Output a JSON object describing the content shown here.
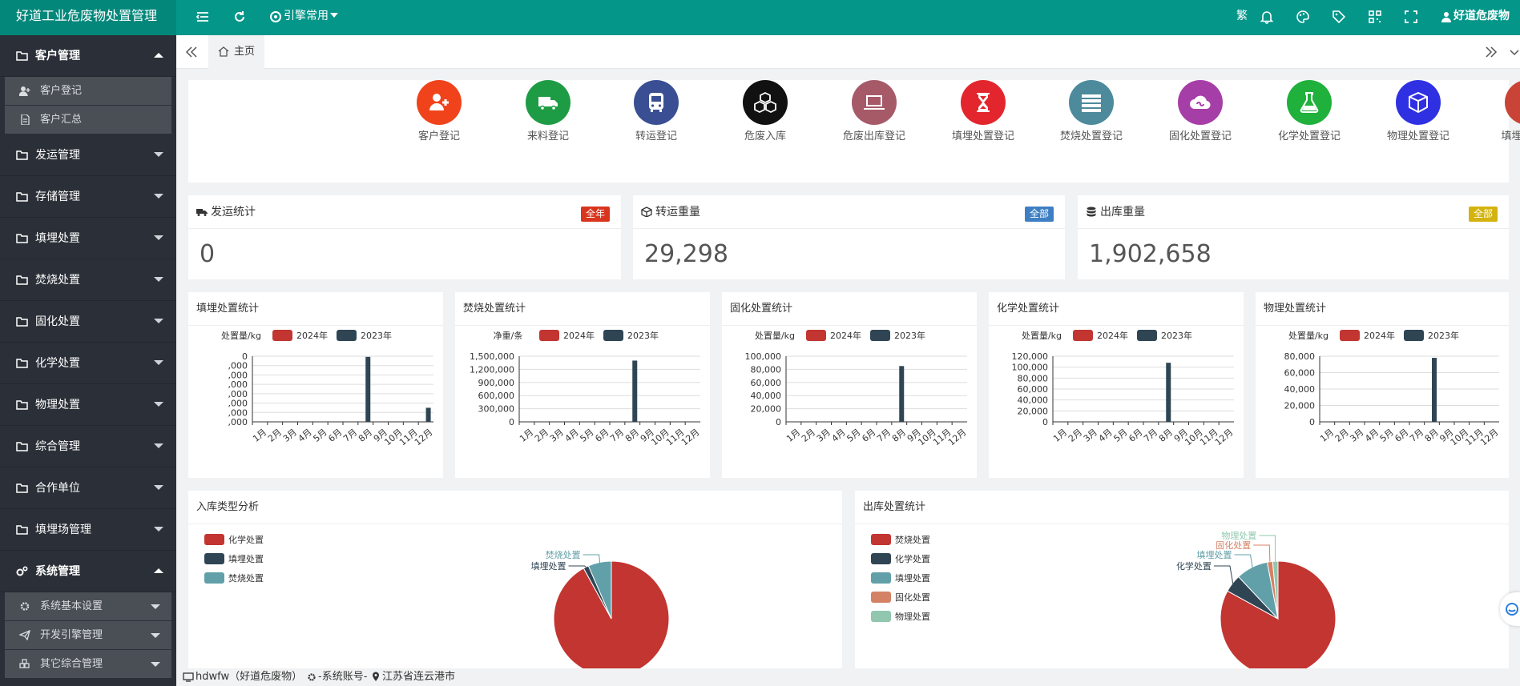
{
  "app": {
    "brand": "好道工业危废物处置管理"
  },
  "topbar": {
    "nav_label": "引擎常用",
    "lang_label": "繁",
    "user_label": "好道危废物"
  },
  "sidebar": {
    "customer": {
      "label": "客户管理",
      "subitems": [
        {
          "label": "客户登记"
        },
        {
          "label": "客户汇总"
        }
      ]
    },
    "menus": [
      {
        "label": "发运管理"
      },
      {
        "label": "存储管理"
      },
      {
        "label": "填埋处置"
      },
      {
        "label": "焚烧处置"
      },
      {
        "label": "固化处置"
      },
      {
        "label": "化学处置"
      },
      {
        "label": "物理处置"
      },
      {
        "label": "综合管理"
      },
      {
        "label": "合作单位"
      },
      {
        "label": "填埋场管理"
      }
    ],
    "system": {
      "label": "系统管理",
      "subitems": [
        {
          "label": "系统基本设置"
        },
        {
          "label": "开发引擎管理"
        },
        {
          "label": "其它综合管理"
        }
      ]
    }
  },
  "tabs": {
    "home": "主页"
  },
  "quick_items": [
    {
      "label": "客户登记",
      "color": "#f0431b",
      "icon": "add-user-icon"
    },
    {
      "label": "来料登记",
      "color": "#1e9c45",
      "icon": "truck-icon"
    },
    {
      "label": "转运登记",
      "color": "#3a4f93",
      "icon": "bus-icon"
    },
    {
      "label": "危废入库",
      "color": "#111111",
      "icon": "cubes-icon"
    },
    {
      "label": "危废出库登记",
      "color": "#a65a68",
      "icon": "laptop-icon"
    },
    {
      "label": "填埋处置登记",
      "color": "#e3262d",
      "icon": "hourglass-icon"
    },
    {
      "label": "焚烧处置登记",
      "color": "#4c8a9c",
      "icon": "list-icon"
    },
    {
      "label": "固化处置登记",
      "color": "#a63ea8",
      "icon": "cloud-link-icon"
    },
    {
      "label": "化学处置登记",
      "color": "#20b03c",
      "icon": "flask-icon"
    },
    {
      "label": "物理处置登记",
      "color": "#3030e3",
      "icon": "cube-icon"
    },
    {
      "label": "填埋场登记",
      "color": "#c94336",
      "icon": "file-icon"
    }
  ],
  "stats": [
    {
      "title": "发运统计",
      "badge": "全年",
      "badge_color": "#d9351e",
      "value": "0",
      "icon": "truck-icon"
    },
    {
      "title": "转运重量",
      "badge": "全部",
      "badge_color": "#3e7fc4",
      "value": "29,298",
      "icon": "cube-icon"
    },
    {
      "title": "出库重量",
      "badge": "全部",
      "badge_color": "#d4b30f",
      "value": "1,902,658",
      "icon": "database-icon"
    }
  ],
  "colors": {
    "y2024": "#c23531",
    "y2023": "#2f4554",
    "teal": "#61a0a8",
    "orange": "#d48265",
    "green": "#91c7ae"
  },
  "chart_data": [
    {
      "type": "bar",
      "title": "填埋处置统计",
      "ylabel": "处置量/kg",
      "ytick_labels": [
        ",000",
        ",000",
        ",000",
        ",000",
        ",000",
        ",000",
        ",000",
        "0"
      ],
      "categories": [
        "1月",
        "2月",
        "3月",
        "4月",
        "5月",
        "6月",
        "7月",
        "8月",
        "9月",
        "10月",
        "11月",
        "12月"
      ],
      "series": [
        {
          "name": "2024年",
          "values": [
            0,
            0,
            0,
            0,
            0,
            0,
            0,
            0,
            0,
            0,
            0,
            0
          ]
        },
        {
          "name": "2023年",
          "values": [
            0,
            0,
            0,
            0,
            0,
            0,
            0,
            97000,
            0,
            0,
            0,
            21000
          ]
        }
      ],
      "ylim": [
        0,
        98000
      ],
      "ticks": [
        0,
        14000,
        28000,
        42000,
        56000,
        70000,
        84000,
        98000
      ]
    },
    {
      "type": "bar",
      "title": "焚烧处置统计",
      "ylabel": "净重/条",
      "ytick_labels": [
        "0",
        "300,000",
        "600,000",
        "900,000",
        "1,200,000",
        "1,500,000"
      ],
      "categories": [
        "1月",
        "2月",
        "3月",
        "4月",
        "5月",
        "6月",
        "7月",
        "8月",
        "9月",
        "10月",
        "11月",
        "12月"
      ],
      "series": [
        {
          "name": "2024年",
          "values": [
            0,
            0,
            0,
            0,
            0,
            0,
            0,
            0,
            0,
            0,
            0,
            0
          ]
        },
        {
          "name": "2023年",
          "values": [
            0,
            0,
            0,
            0,
            0,
            0,
            0,
            1400000,
            0,
            0,
            0,
            0
          ]
        }
      ],
      "ylim": [
        0,
        1500000
      ],
      "ticks": [
        0,
        300000,
        600000,
        900000,
        1200000,
        1500000
      ]
    },
    {
      "type": "bar",
      "title": "固化处置统计",
      "ylabel": "处置量/kg",
      "ytick_labels": [
        "0",
        "20,000",
        "40,000",
        "60,000",
        "80,000",
        "100,000"
      ],
      "categories": [
        "1月",
        "2月",
        "3月",
        "4月",
        "5月",
        "6月",
        "7月",
        "8月",
        "9月",
        "10月",
        "11月",
        "12月"
      ],
      "series": [
        {
          "name": "2024年",
          "values": [
            0,
            0,
            0,
            0,
            0,
            0,
            0,
            0,
            0,
            0,
            0,
            0
          ]
        },
        {
          "name": "2023年",
          "values": [
            0,
            0,
            0,
            0,
            0,
            0,
            0,
            85000,
            0,
            0,
            0,
            0
          ]
        }
      ],
      "ylim": [
        0,
        100000
      ],
      "ticks": [
        0,
        20000,
        40000,
        60000,
        80000,
        100000
      ]
    },
    {
      "type": "bar",
      "title": "化学处置统计",
      "ylabel": "处置量/kg",
      "ytick_labels": [
        "0",
        "20,000",
        "40,000",
        "60,000",
        "80,000",
        "100,000",
        "120,000"
      ],
      "categories": [
        "1月",
        "2月",
        "3月",
        "4月",
        "5月",
        "6月",
        "7月",
        "8月",
        "9月",
        "10月",
        "11月",
        "12月"
      ],
      "series": [
        {
          "name": "2024年",
          "values": [
            0,
            0,
            0,
            0,
            0,
            0,
            0,
            0,
            0,
            0,
            0,
            0
          ]
        },
        {
          "name": "2023年",
          "values": [
            0,
            0,
            0,
            0,
            0,
            0,
            0,
            108000,
            0,
            0,
            0,
            0
          ]
        }
      ],
      "ylim": [
        0,
        120000
      ],
      "ticks": [
        0,
        20000,
        40000,
        60000,
        80000,
        100000,
        120000
      ]
    },
    {
      "type": "bar",
      "title": "物理处置统计",
      "ylabel": "处置量/kg",
      "ytick_labels": [
        "0",
        "20,000",
        "40,000",
        "60,000",
        "80,000"
      ],
      "categories": [
        "1月",
        "2月",
        "3月",
        "4月",
        "5月",
        "6月",
        "7月",
        "8月",
        "9月",
        "10月",
        "11月",
        "12月"
      ],
      "series": [
        {
          "name": "2024年",
          "values": [
            0,
            0,
            0,
            0,
            0,
            0,
            0,
            0,
            0,
            0,
            0,
            0
          ]
        },
        {
          "name": "2023年",
          "values": [
            0,
            0,
            0,
            0,
            0,
            0,
            0,
            78000,
            0,
            0,
            0,
            0
          ]
        }
      ],
      "ylim": [
        0,
        80000
      ],
      "ticks": [
        0,
        20000,
        40000,
        60000,
        80000
      ]
    },
    {
      "type": "pie",
      "title": "入库类型分析",
      "legend": [
        "化学处置",
        "填埋处置",
        "焚烧处置"
      ],
      "series": [
        {
          "name": "化学处置",
          "value": 92
        },
        {
          "name": "填埋处置",
          "value": 1.5
        },
        {
          "name": "焚烧处置",
          "value": 6.5
        }
      ]
    },
    {
      "type": "pie",
      "title": "出库处置统计",
      "legend": [
        "焚烧处置",
        "化学处置",
        "填埋处置",
        "固化处置",
        "物理处置"
      ],
      "series": [
        {
          "name": "焚烧处置",
          "value": 83
        },
        {
          "name": "化学处置",
          "value": 5
        },
        {
          "name": "填埋处置",
          "value": 9
        },
        {
          "name": "固化处置",
          "value": 1.5
        },
        {
          "name": "物理处置",
          "value": 1.5
        }
      ]
    }
  ],
  "footer": {
    "account": "hdwfw（好道危废物）",
    "account_label": "-系统账号-",
    "location": "江苏省连云港市"
  }
}
